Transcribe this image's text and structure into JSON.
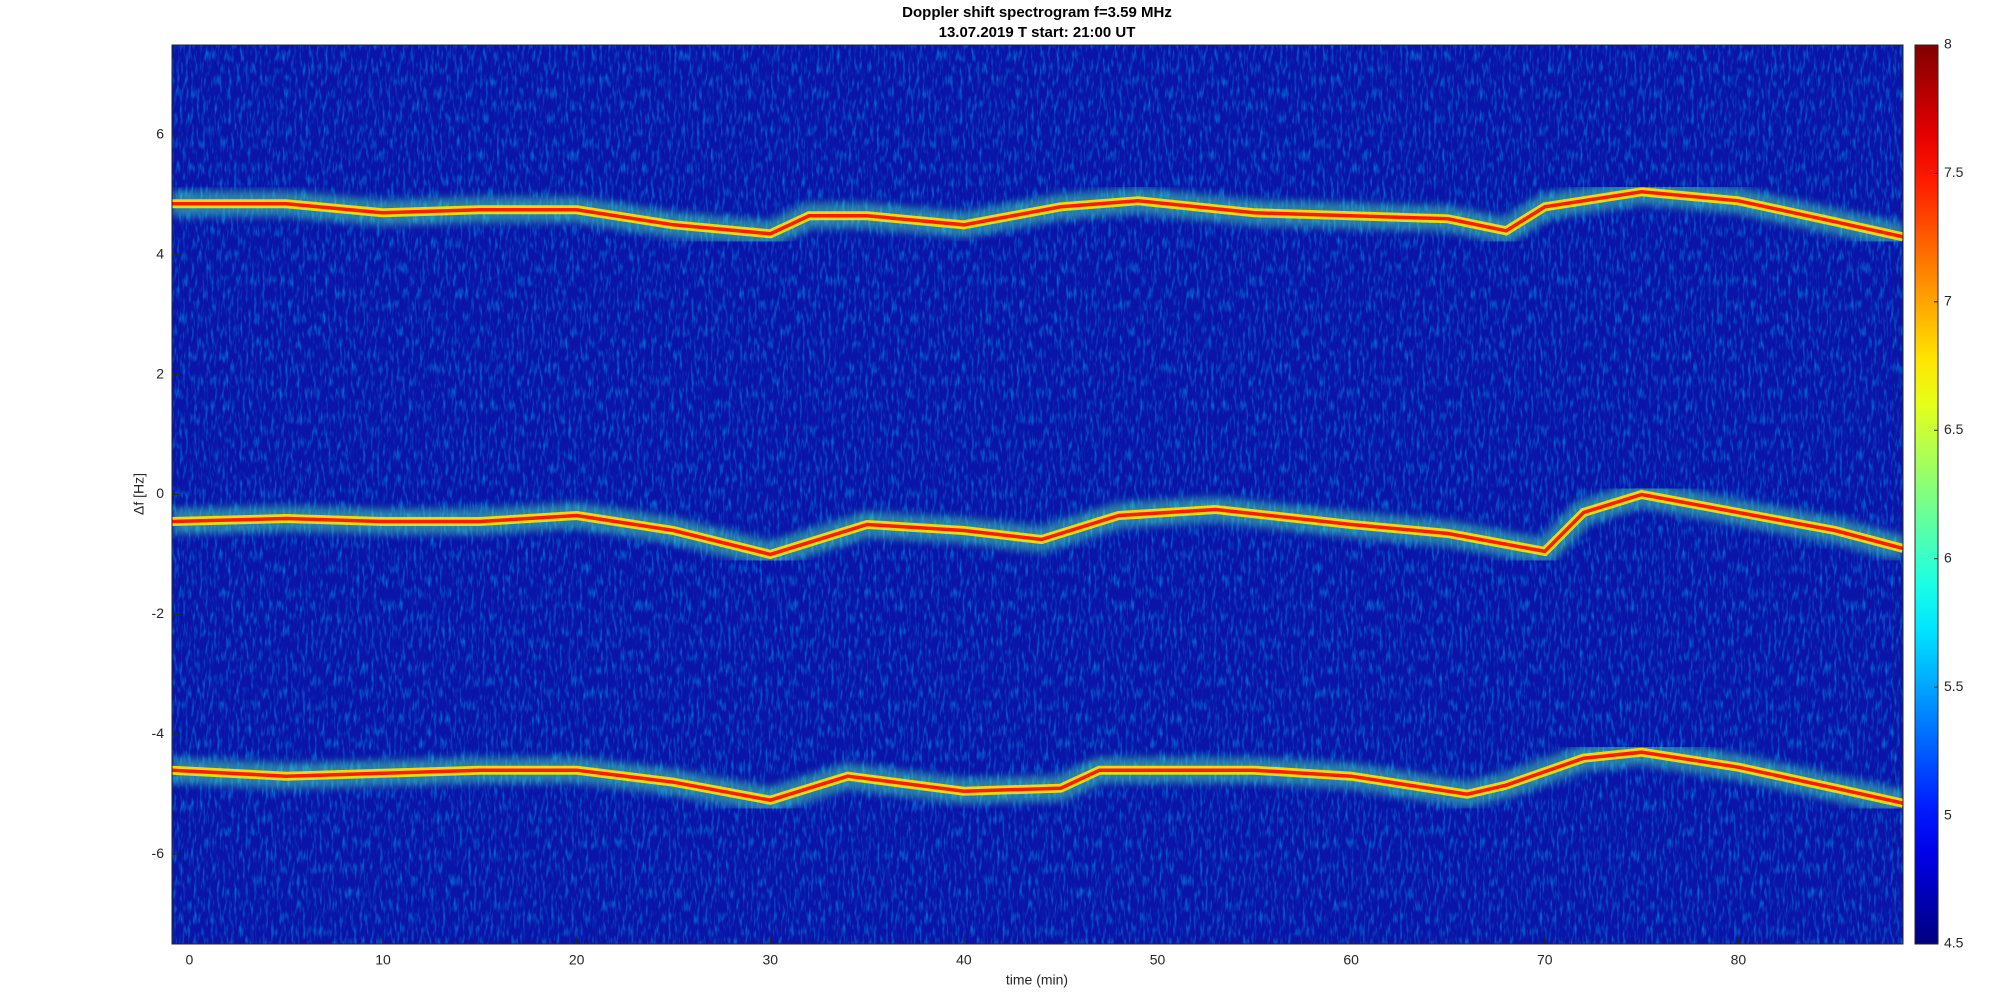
{
  "chart_data": {
    "type": "spectrogram",
    "title": "Doppler shift spectrogram f=3.59 MHz",
    "subtitle": "13.07.2019   T start: 21:00 UT",
    "xlabel": "time (min)",
    "ylabel": "Δf [Hz]",
    "xlim": [
      -0.9,
      88.5
    ],
    "xticks": [
      0,
      10,
      20,
      30,
      40,
      50,
      60,
      70,
      80
    ],
    "ylim": [
      -7.5,
      7.5
    ],
    "yticks": [
      -6,
      -4,
      -2,
      0,
      2,
      4,
      6
    ],
    "colormap": "jet",
    "clim": [
      4.5,
      8
    ],
    "cticks": [
      4.5,
      5,
      5.5,
      6,
      6.5,
      7,
      7.5,
      8
    ],
    "series": [
      {
        "name": "upper trace",
        "color": "#ff1a00",
        "x": [
          -0.9,
          5,
          10,
          15,
          20,
          25,
          30,
          32,
          35,
          40,
          45,
          49,
          55,
          60,
          65,
          68,
          70,
          75,
          80,
          85,
          88.5
        ],
        "values": [
          4.85,
          4.85,
          4.7,
          4.75,
          4.75,
          4.5,
          4.35,
          4.65,
          4.65,
          4.5,
          4.8,
          4.9,
          4.7,
          4.65,
          4.6,
          4.4,
          4.8,
          5.05,
          4.9,
          4.55,
          4.3
        ]
      },
      {
        "name": "middle trace",
        "color": "#ff1a00",
        "x": [
          -0.9,
          5,
          10,
          15,
          20,
          25,
          30,
          32,
          35,
          40,
          44,
          48,
          53,
          60,
          65,
          70,
          72,
          75,
          80,
          85,
          88.5
        ],
        "values": [
          -0.45,
          -0.4,
          -0.45,
          -0.45,
          -0.35,
          -0.6,
          -1.0,
          -0.8,
          -0.5,
          -0.6,
          -0.75,
          -0.35,
          -0.25,
          -0.5,
          -0.65,
          -0.95,
          -0.3,
          0,
          -0.3,
          -0.6,
          -0.9
        ]
      },
      {
        "name": "lower trace",
        "color": "#ff1a00",
        "x": [
          -0.9,
          5,
          10,
          15,
          20,
          25,
          30,
          34,
          40,
          45,
          47,
          55,
          60,
          66,
          68,
          72,
          75,
          80,
          85,
          88.5
        ],
        "values": [
          -4.6,
          -4.7,
          -4.65,
          -4.6,
          -4.6,
          -4.8,
          -5.1,
          -4.7,
          -4.95,
          -4.9,
          -4.6,
          -4.6,
          -4.7,
          -5.0,
          -4.85,
          -4.4,
          -4.3,
          -4.55,
          -4.9,
          -5.15
        ]
      }
    ]
  }
}
